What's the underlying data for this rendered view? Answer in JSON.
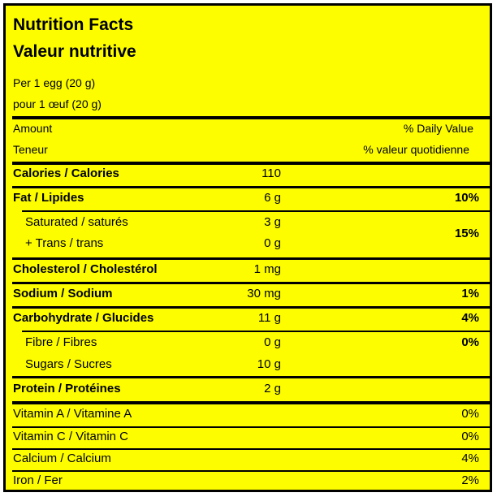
{
  "title_en": "Nutrition Facts",
  "title_fr": "Valeur nutritive",
  "serving_en": "Per 1 egg (20 g)",
  "serving_fr": "pour 1 œuf (20 g)",
  "header": {
    "amount_en": "Amount",
    "amount_fr": "Teneur",
    "dv_en": "% Daily Value",
    "dv_fr": "% valeur quotidienne"
  },
  "rows": {
    "calories": {
      "label": "Calories / Calories",
      "amount": "110"
    },
    "fat": {
      "label": "Fat / Lipides",
      "amount": "6 g",
      "dv": "10%"
    },
    "saturated": {
      "label": "Saturated / saturés",
      "amount": "3 g"
    },
    "trans": {
      "label": "+ Trans / trans",
      "amount": "0 g"
    },
    "sat_trans_dv": "15%",
    "cholesterol": {
      "label": "Cholesterol / Cholestérol",
      "amount": "1 mg"
    },
    "sodium": {
      "label": "Sodium / Sodium",
      "amount": "30 mg",
      "dv": "1%"
    },
    "carbohydrate": {
      "label": "Carbohydrate / Glucides",
      "amount": "11 g",
      "dv": "4%"
    },
    "fibre": {
      "label": "Fibre / Fibres",
      "amount": "0 g",
      "dv": "0%"
    },
    "sugars": {
      "label": "Sugars / Sucres",
      "amount": "10 g"
    },
    "protein": {
      "label": "Protein / Protéines",
      "amount": "2 g"
    }
  },
  "vitamins": [
    {
      "label": "Vitamin A / Vitamine A",
      "dv": "0%"
    },
    {
      "label": "Vitamin C / Vitamin C",
      "dv": "0%"
    },
    {
      "label": "Calcium / Calcium",
      "dv": "4%"
    },
    {
      "label": "Iron / Fer",
      "dv": "2%"
    }
  ],
  "colors": {
    "background": "#fdfd00",
    "text": "#000000"
  }
}
